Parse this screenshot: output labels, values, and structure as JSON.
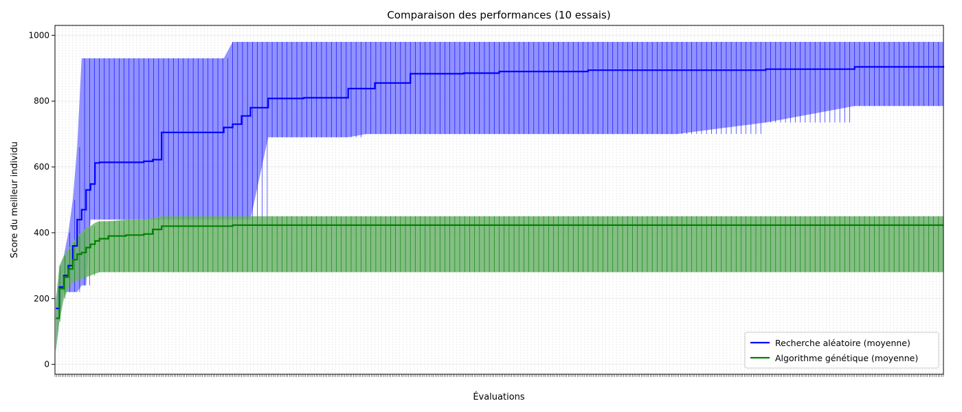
{
  "chart_data": {
    "type": "line",
    "title": "Comparaison des performances (10 essais)",
    "xlabel": "Évaluations",
    "ylabel": "Score du meilleur individu",
    "xlim": [
      0,
      1000
    ],
    "ylim": [
      -30,
      1030
    ],
    "y_ticks": [
      0,
      200,
      400,
      600,
      800,
      1000
    ],
    "grid": true,
    "legend_position": "bottom-right",
    "series": [
      {
        "name": "Recherche aléatoire (moyenne)",
        "color": "#0000ff",
        "band_color": "#7f7fff",
        "x": [
          1,
          5,
          10,
          15,
          20,
          25,
          30,
          35,
          40,
          45,
          50,
          55,
          60,
          80,
          100,
          110,
          120,
          140,
          160,
          180,
          190,
          200,
          210,
          220,
          240,
          280,
          300,
          330,
          350,
          360,
          400,
          460,
          500,
          600,
          700,
          800,
          900,
          1000
        ],
        "mean": [
          170,
          235,
          270,
          300,
          360,
          440,
          470,
          530,
          548,
          612,
          614,
          614,
          614,
          614,
          617,
          622,
          705,
          705,
          705,
          705,
          720,
          730,
          755,
          780,
          808,
          810,
          810,
          838,
          838,
          855,
          883,
          885,
          890,
          894,
          894,
          897,
          904,
          907
        ],
        "upper": [
          200,
          280,
          330,
          400,
          500,
          660,
          930,
          930,
          930,
          930,
          930,
          930,
          930,
          930,
          930,
          930,
          930,
          930,
          930,
          930,
          930,
          980,
          980,
          980,
          980,
          980,
          980,
          980,
          980,
          980,
          980,
          980,
          980,
          980,
          980,
          980,
          980,
          980
        ],
        "lower": [
          40,
          140,
          220,
          220,
          220,
          220,
          240,
          240,
          440,
          440,
          440,
          440,
          440,
          440,
          440,
          440,
          440,
          440,
          440,
          440,
          440,
          440,
          440,
          440,
          690,
          690,
          690,
          690,
          700,
          700,
          700,
          700,
          700,
          700,
          700,
          735,
          785,
          785
        ]
      },
      {
        "name": "Algorithme génétique (moyenne)",
        "color": "#008000",
        "band_color": "#6fb46f",
        "x": [
          1,
          5,
          10,
          15,
          20,
          25,
          30,
          35,
          40,
          45,
          50,
          60,
          80,
          100,
          110,
          120,
          200,
          300,
          400,
          500,
          600,
          700,
          800,
          900,
          1000
        ],
        "mean": [
          140,
          230,
          265,
          290,
          318,
          335,
          340,
          355,
          365,
          375,
          382,
          390,
          393,
          396,
          410,
          420,
          423,
          423,
          423,
          423,
          423,
          423,
          423,
          423,
          423
        ],
        "upper": [
          190,
          300,
          330,
          350,
          370,
          390,
          400,
          415,
          420,
          430,
          435,
          435,
          440,
          440,
          445,
          450,
          450,
          450,
          450,
          450,
          450,
          450,
          450,
          450,
          450
        ],
        "lower": [
          40,
          130,
          200,
          230,
          250,
          255,
          260,
          265,
          270,
          275,
          280,
          280,
          280,
          280,
          280,
          280,
          280,
          280,
          280,
          280,
          280,
          280,
          280,
          280,
          280
        ]
      }
    ]
  }
}
